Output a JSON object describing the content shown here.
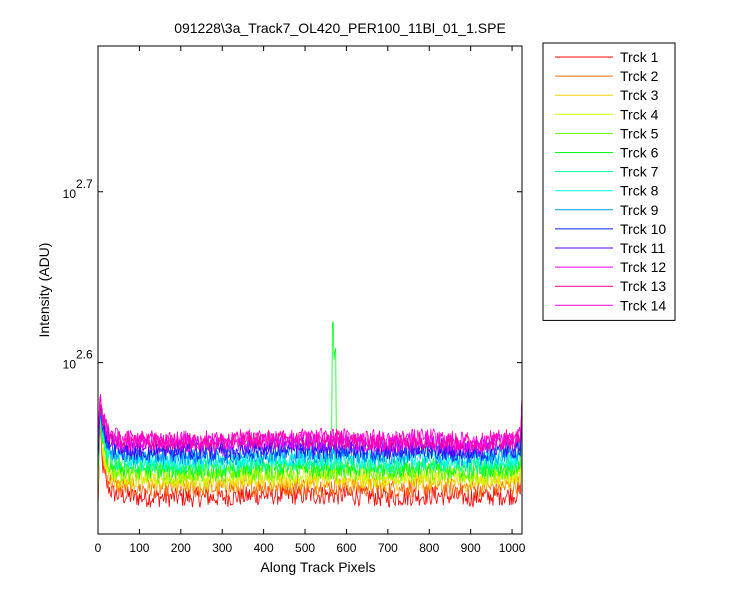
{
  "chart_data": {
    "type": "line",
    "title": "091228\\3a_Track7_OL420_PER100_11Bl_01_1.SPE",
    "xlabel": "Along Track Pixels",
    "ylabel": "Intensity (ADU)",
    "xlim": [
      0,
      1024
    ],
    "ylim": [
      316,
      610
    ],
    "y_scale": "log",
    "grid": false,
    "legend_position": "outside-top-right",
    "x_ticks": [
      0,
      100,
      200,
      300,
      400,
      500,
      600,
      700,
      800,
      900,
      1000
    ],
    "x_tick_labels": [
      "0",
      "100",
      "200",
      "300",
      "400",
      "500",
      "600",
      "700",
      "800",
      "900",
      "1000"
    ],
    "y_ticks": [
      {
        "value": 398.1,
        "base": "10",
        "exponent": "2.6"
      },
      {
        "value": 501.2,
        "base": "10",
        "exponent": "2.7"
      }
    ],
    "x_samples": [
      0,
      5,
      10,
      20,
      35,
      50,
      100,
      200,
      300,
      400,
      500,
      600,
      700,
      800,
      900,
      1000,
      1020,
      1024
    ],
    "series": [
      {
        "name": "Trck 1",
        "color": "#ff0000",
        "values": [
          326,
          368,
          348,
          338,
          334,
          333,
          332,
          332,
          332,
          333,
          333,
          333,
          332,
          333,
          332,
          333,
          334,
          372
        ]
      },
      {
        "name": "Trck 2",
        "color": "#ff6a00",
        "values": [
          330,
          370,
          351,
          342,
          338,
          337,
          336,
          336,
          336,
          337,
          337,
          337,
          336,
          337,
          336,
          337,
          338,
          372
        ]
      },
      {
        "name": "Trck 3",
        "color": "#ffd000",
        "values": [
          333,
          372,
          354,
          345,
          341,
          340,
          339,
          339,
          339,
          340,
          340,
          340,
          339,
          340,
          339,
          340,
          341,
          373
        ]
      },
      {
        "name": "Trck 4",
        "color": "#c8ff00",
        "values": [
          335,
          373,
          356,
          347,
          343,
          342,
          341,
          341,
          341,
          342,
          342,
          342,
          341,
          342,
          341,
          342,
          343,
          373
        ]
      },
      {
        "name": "Trck 5",
        "color": "#5dff00",
        "values": [
          337,
          374,
          358,
          349,
          345,
          344,
          343,
          343,
          343,
          344,
          344,
          344,
          343,
          344,
          343,
          344,
          345,
          373
        ]
      },
      {
        "name": "Trck 6",
        "color": "#00ff20",
        "values": [
          339,
          375,
          360,
          351,
          347,
          346,
          345,
          345,
          345,
          346,
          346,
          346,
          345,
          346,
          345,
          346,
          347,
          374
        ]
      },
      {
        "name": "Trck 7",
        "color": "#00ff95",
        "values": [
          341,
          376,
          362,
          353,
          349,
          348,
          347,
          347,
          347,
          348,
          348,
          348,
          347,
          348,
          347,
          348,
          349,
          374
        ]
      },
      {
        "name": "Trck 8",
        "color": "#00ffff",
        "values": [
          343,
          377,
          364,
          355,
          351,
          350,
          349,
          349,
          349,
          350,
          350,
          350,
          349,
          350,
          349,
          350,
          351,
          375
        ]
      },
      {
        "name": "Trck 9",
        "color": "#0095ff",
        "values": [
          345,
          378,
          366,
          357,
          353,
          352,
          351,
          351,
          351,
          352,
          352,
          352,
          351,
          352,
          350,
          352,
          353,
          375
        ]
      },
      {
        "name": "Trck 10",
        "color": "#0020ff",
        "values": [
          347,
          379,
          368,
          359,
          355,
          354,
          353,
          353,
          353,
          354,
          354,
          354,
          353,
          354,
          352,
          354,
          355,
          376
        ]
      },
      {
        "name": "Trck 11",
        "color": "#5d00ff",
        "values": [
          349,
          380,
          369,
          361,
          357,
          356,
          355,
          355,
          355,
          356,
          356,
          356,
          355,
          356,
          354,
          356,
          357,
          376
        ]
      },
      {
        "name": "Trck 12",
        "color": "#ff00ff",
        "values": [
          351,
          381,
          370,
          363,
          359,
          358,
          357,
          357,
          357,
          358,
          358,
          358,
          357,
          358,
          356,
          358,
          359,
          377
        ]
      },
      {
        "name": "Trck 13",
        "color": "#ff0090",
        "values": [
          352,
          381,
          371,
          364,
          360,
          359,
          358,
          358,
          358,
          359,
          359,
          359,
          358,
          359,
          357,
          359,
          360,
          377
        ]
      },
      {
        "name": "Trck 14",
        "color": "#ff00d0",
        "values": [
          353,
          382,
          372,
          365,
          361,
          360,
          359,
          359,
          359,
          360,
          360,
          360,
          359,
          360,
          358,
          360,
          361,
          378
        ]
      }
    ],
    "annotations": [
      {
        "series": "Trck 6",
        "type": "spike",
        "x": [
          566,
          574
        ],
        "peak": 421
      }
    ]
  }
}
